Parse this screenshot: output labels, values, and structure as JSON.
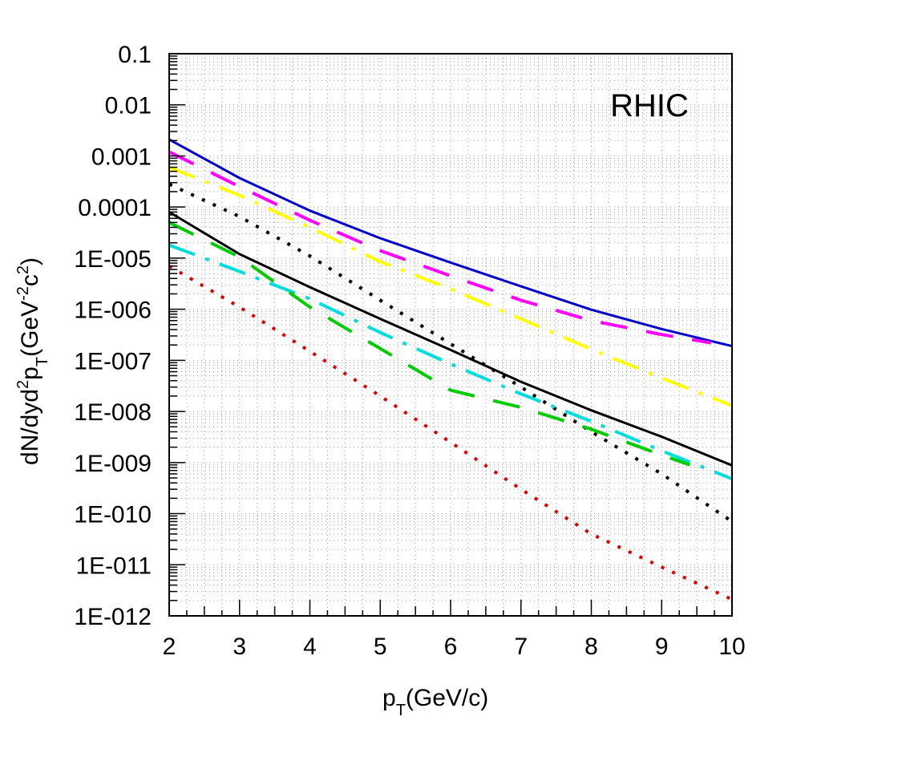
{
  "chart_data": {
    "type": "line",
    "title": "",
    "annotation": "RHIC",
    "xlabel": {
      "base": "p",
      "sub": "T",
      "rest": "(GeV/c)"
    },
    "ylabel": {
      "p1": "dN/dyd",
      "sup1": "2",
      "p2": "p",
      "sub1": "T",
      "p3": "(GeV",
      "sup2": "-2",
      "p4": "c",
      "sup3": "2",
      "p5": ")"
    },
    "xlim": [
      2,
      10
    ],
    "ylim_log10": [
      -12,
      -1
    ],
    "y_scale": "log",
    "grid": true,
    "x_ticks": [
      "2",
      "3",
      "4",
      "5",
      "6",
      "7",
      "8",
      "9",
      "10"
    ],
    "y_ticks": [
      "1E-012",
      "1E-011",
      "1E-010",
      "1E-009",
      "1E-008",
      "1E-007",
      "1E-006",
      "1E-005",
      "0.0001",
      "0.001",
      "0.01",
      "0.1"
    ],
    "series": [
      {
        "color": "#0000cc",
        "style": "solid",
        "width": 3,
        "x_range": [
          2,
          10
        ],
        "x": [
          2,
          3,
          4,
          5,
          6,
          7,
          8,
          9,
          10
        ],
        "y": [
          0.0021,
          0.00037,
          8.5e-05,
          2.45e-05,
          8.2e-06,
          2.8e-06,
          9.8e-07,
          4.1e-07,
          1.9e-07
        ]
      },
      {
        "color": "#ff00ff",
        "style": "longdash",
        "width": 4,
        "x_range": [
          2,
          9.7
        ],
        "x": [
          2,
          3,
          4,
          5,
          6,
          7,
          8,
          9,
          9.7
        ],
        "y": [
          0.0012,
          0.00025,
          5.5e-05,
          1.4e-05,
          4.5e-06,
          1.5e-06,
          6e-07,
          3.2e-07,
          2.2e-07
        ]
      },
      {
        "color": "#ffff00",
        "style": "dashdot",
        "width": 4,
        "x_range": [
          2,
          10
        ],
        "x": [
          2,
          3,
          4,
          5,
          6,
          7,
          8,
          9,
          10
        ],
        "y": [
          0.0006,
          0.00017,
          4e-05,
          8.5e-06,
          2.5e-06,
          6.5e-07,
          1.65e-07,
          4.5e-08,
          1.3e-08
        ]
      },
      {
        "color": "#000000",
        "style": "dotted",
        "width": 4,
        "x_range": [
          2,
          10
        ],
        "x": [
          2,
          3,
          4,
          5,
          6,
          7,
          8,
          9,
          10
        ],
        "y": [
          0.00028,
          6.5e-05,
          1.1e-05,
          1.5e-06,
          2.1e-07,
          3e-08,
          4e-09,
          6e-10,
          7e-11
        ]
      },
      {
        "color": "#000000",
        "style": "solid",
        "width": 3,
        "x_range": [
          2,
          10
        ],
        "x": [
          2,
          3,
          4,
          5,
          6,
          7,
          8,
          9,
          10
        ],
        "y": [
          8e-05,
          1.2e-05,
          2.7e-06,
          6.5e-07,
          1.6e-07,
          3.8e-08,
          1.05e-08,
          3.2e-09,
          8.8e-10
        ]
      },
      {
        "color": "#00dddd",
        "style": "dashdot",
        "width": 4,
        "x_range": [
          2,
          10
        ],
        "x": [
          2,
          3,
          4,
          5,
          6,
          7,
          8,
          9,
          10
        ],
        "y": [
          1.8e-05,
          5.5e-06,
          1.6e-06,
          3.5e-07,
          8.5e-08,
          2.2e-08,
          6.4e-09,
          1.7e-09,
          4.8e-10
        ]
      },
      {
        "color": "#00cc00",
        "style": "longdash",
        "width": 4,
        "x_range": [
          2,
          9.4
        ],
        "x": [
          2,
          3,
          4,
          5,
          6,
          7,
          8,
          9,
          9.4
        ],
        "y": [
          5e-05,
          1.05e-05,
          1.1e-06,
          1.7e-07,
          2.6e-08,
          1.2e-08,
          4.5e-09,
          1.4e-09,
          9e-10
        ]
      },
      {
        "color": "#dd0000",
        "style": "dotted",
        "width": 4,
        "x_range": [
          2,
          10
        ],
        "x": [
          2,
          3,
          4,
          5,
          6,
          7,
          8,
          9,
          10
        ],
        "y": [
          7e-06,
          1.1e-06,
          1.5e-07,
          2e-08,
          2.5e-09,
          3e-10,
          4e-11,
          9e-12,
          2.1e-12
        ]
      }
    ]
  }
}
